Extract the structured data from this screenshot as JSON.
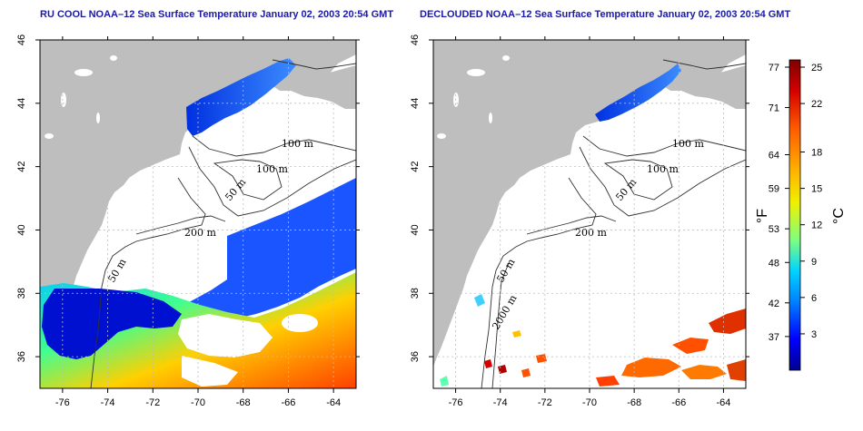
{
  "left_panel": {
    "title": "RU COOL NOAA–12 Sea Surface Temperature January 02, 2003 20:54 GMT",
    "x_ticks": [
      "-76",
      "-74",
      "-72",
      "-70",
      "-68",
      "-66",
      "-64"
    ],
    "y_ticks": [
      "36",
      "38",
      "40",
      "42",
      "44",
      "46"
    ],
    "contour_labels": [
      "100 m",
      "100 m",
      "50 m",
      "200 m",
      "50 m"
    ]
  },
  "right_panel": {
    "title": "DECLOUDED NOAA–12 Sea Surface Temperature January 02, 2003 20:54 GMT",
    "x_ticks": [
      "-76",
      "-74",
      "-72",
      "-70",
      "-68",
      "-66",
      "-64"
    ],
    "y_ticks": [
      "36",
      "38",
      "40",
      "42",
      "44",
      "46"
    ],
    "contour_labels": [
      "100 m",
      "100 m",
      "50 m",
      "200 m",
      "50 m",
      "2000 m"
    ]
  },
  "colorbar": {
    "fahrenheit_ticks": [
      "77",
      "71",
      "64",
      "59",
      "53",
      "48",
      "42",
      "37"
    ],
    "celsius_ticks": [
      "25",
      "22",
      "18",
      "15",
      "12",
      "9",
      "6",
      "3"
    ],
    "fahrenheit_unit": "°F",
    "celsius_unit": "°C",
    "colors": [
      "#7f0000",
      "#d40000",
      "#ff5a00",
      "#ffb400",
      "#f0f000",
      "#7fff7f",
      "#00d4ff",
      "#0080ff",
      "#0000ff",
      "#00008f"
    ]
  },
  "colors": {
    "land": "#bebebe",
    "ocean_empty": "#ffffff",
    "title": "#1a1aa6",
    "grid": "#bdbdbd"
  }
}
